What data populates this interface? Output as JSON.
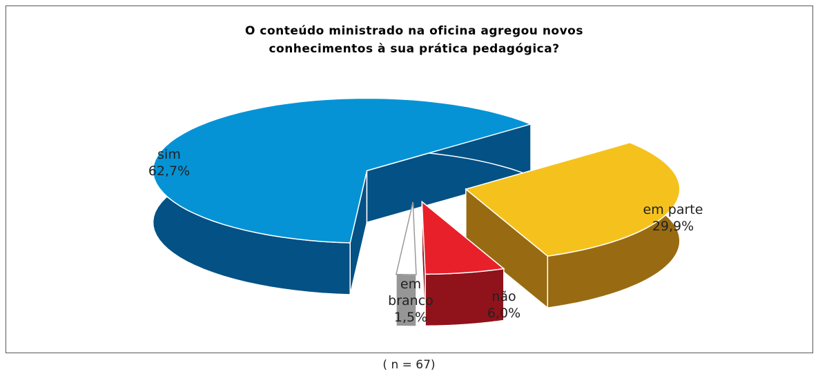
{
  "chart_data": {
    "type": "pie",
    "title": [
      "O conteúdo ministrado na oficina agregou novos",
      "conhecimentos à sua prática pedagógica?"
    ],
    "categories": [
      "em parte",
      "não",
      "em branco",
      "sim"
    ],
    "values": [
      29.9,
      6.0,
      1.5,
      62.7
    ],
    "value_labels": [
      "29,9%",
      "6,0%",
      "1,5%",
      "62,7%"
    ],
    "colors": [
      "#f5c21d",
      "#e8202a",
      "#ffffff",
      "#0593d6"
    ],
    "note": "( n = 67)"
  }
}
